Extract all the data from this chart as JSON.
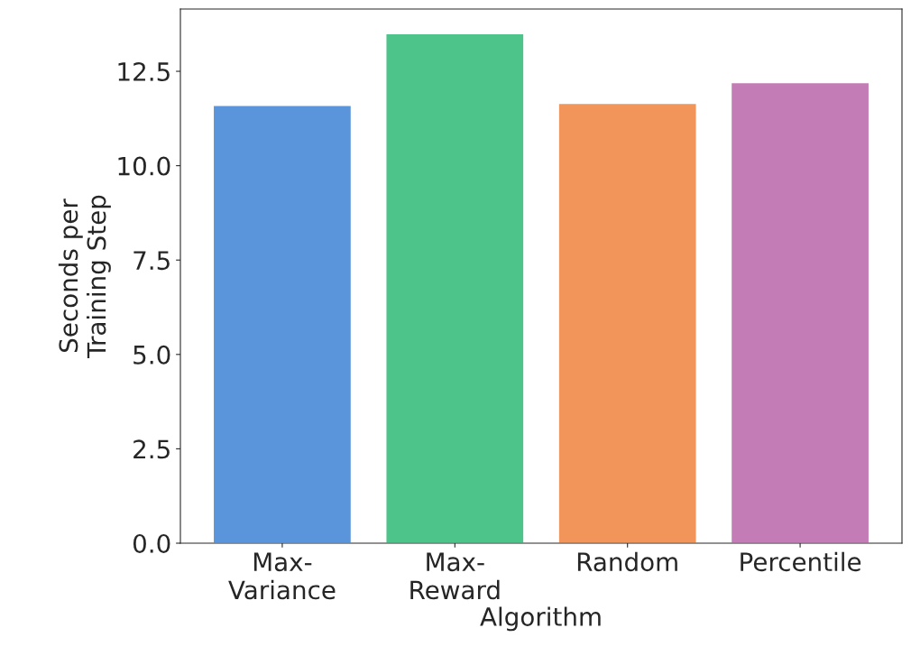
{
  "chart_data": {
    "type": "bar",
    "xlabel": "Algorithm",
    "ylabel": "Seconds per\nTraining Step",
    "categories": [
      "Max-\nVariance",
      "Max-\nReward",
      "Random",
      "Percentile"
    ],
    "values": [
      11.6,
      13.5,
      11.65,
      12.2
    ],
    "colors": [
      "#5a94db",
      "#4dc48a",
      "#f2955a",
      "#c47cb6"
    ],
    "ylim": [
      0,
      14.15
    ],
    "yticks": [
      {
        "value": 0,
        "label": "0.0"
      },
      {
        "value": 2.5,
        "label": "2.5"
      },
      {
        "value": 5,
        "label": "5.0"
      },
      {
        "value": 7.5,
        "label": "7.5"
      },
      {
        "value": 10,
        "label": "10.0"
      },
      {
        "value": 12.5,
        "label": "12.5"
      }
    ],
    "grid": false,
    "legend": false
  }
}
